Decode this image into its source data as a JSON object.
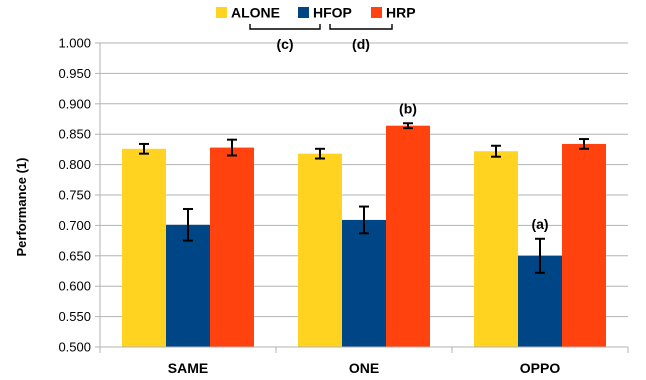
{
  "chart_data": {
    "type": "bar",
    "categories": [
      "SAME",
      "ONE",
      "OPPO"
    ],
    "series": [
      {
        "name": "ALONE",
        "color": "#FFD320",
        "values": [
          0.826,
          0.818,
          0.822
        ],
        "errors": [
          0.008,
          0.008,
          0.009
        ]
      },
      {
        "name": "HFOP",
        "color": "#004586",
        "values": [
          0.701,
          0.709,
          0.65
        ],
        "errors": [
          0.026,
          0.022,
          0.028
        ]
      },
      {
        "name": "HRP",
        "color": "#FF420E",
        "values": [
          0.828,
          0.864,
          0.834
        ],
        "errors": [
          0.013,
          0.004,
          0.008
        ]
      }
    ],
    "title": "",
    "xlabel": "",
    "ylabel": "Performance (1)",
    "ylim": [
      0.5,
      1.0
    ],
    "yticks": [
      "0.500",
      "0.550",
      "0.600",
      "0.650",
      "0.700",
      "0.750",
      "0.800",
      "0.850",
      "0.900",
      "0.950",
      "1.000"
    ],
    "grid": true,
    "legend_position": "top",
    "annotations": [
      {
        "label": "(a)",
        "category": "OPPO",
        "series": "HFOP"
      },
      {
        "label": "(b)",
        "category": "ONE",
        "series": "HRP"
      }
    ],
    "legend_brackets": [
      {
        "label": "(c)",
        "from": "ALONE",
        "to": "HFOP"
      },
      {
        "label": "(d)",
        "from": "HFOP",
        "to": "HRP"
      }
    ]
  }
}
